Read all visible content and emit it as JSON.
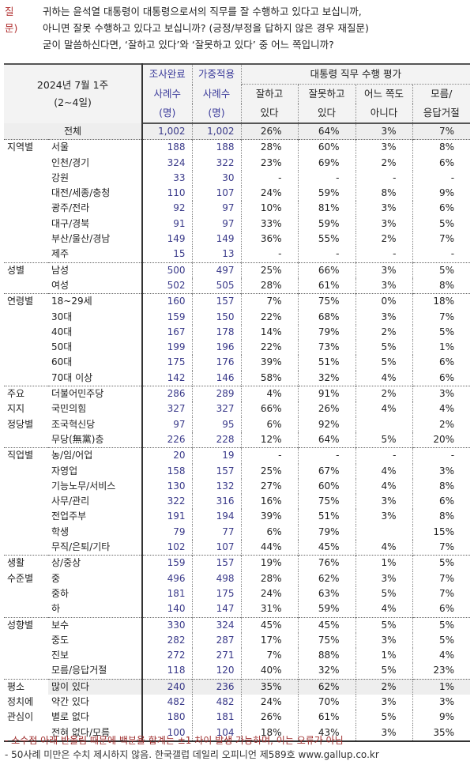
{
  "question": {
    "tag": "질문)",
    "lines": [
      "귀하는 윤석열 대통령이 대통령으로서의 직무를 잘 수행하고 있다고 보십니까,",
      "아니면 잘못 수행하고 있다고 보십니까? (긍정/부정을 답하지 않은 경우 재질문)",
      "굳이 말씀하신다면, ‘잘하고 있다’와 ‘잘못하고 있다’ 중 어느 쪽입니까?"
    ]
  },
  "header": {
    "period": "2024년 7월 1주",
    "dates": "(2~4일)",
    "col1_top": "조사완료",
    "col2_top": "가중적용",
    "n_label": "사례수",
    "n_unit": "(명)",
    "group_title": "대통령 직무 수행 평가",
    "c1": [
      "잘하고",
      "있다"
    ],
    "c2": [
      "잘못하고",
      "있다"
    ],
    "c3": [
      "어느 쪽도",
      "아니다"
    ],
    "c4": [
      "모름/",
      "응답거절"
    ]
  },
  "rows": [
    {
      "g": "",
      "label": "전체",
      "v": [
        "1,002",
        "1,002",
        "26%",
        "64%",
        "3%",
        "7%"
      ],
      "total": true
    },
    {
      "g": "지역별",
      "label": "서울",
      "v": [
        "188",
        "188",
        "28%",
        "60%",
        "3%",
        "8%"
      ],
      "sep": true
    },
    {
      "g": "",
      "label": "인천/경기",
      "v": [
        "324",
        "322",
        "23%",
        "69%",
        "2%",
        "6%"
      ]
    },
    {
      "g": "",
      "label": "강원",
      "v": [
        "33",
        "30",
        "-",
        "-",
        "-",
        "-"
      ]
    },
    {
      "g": "",
      "label": "대전/세종/충청",
      "v": [
        "110",
        "107",
        "24%",
        "59%",
        "8%",
        "9%"
      ]
    },
    {
      "g": "",
      "label": "광주/전라",
      "v": [
        "92",
        "97",
        "10%",
        "81%",
        "3%",
        "6%"
      ]
    },
    {
      "g": "",
      "label": "대구/경북",
      "v": [
        "91",
        "97",
        "33%",
        "59%",
        "3%",
        "5%"
      ]
    },
    {
      "g": "",
      "label": "부산/울산/경남",
      "v": [
        "149",
        "149",
        "36%",
        "55%",
        "2%",
        "7%"
      ]
    },
    {
      "g": "",
      "label": "제주",
      "v": [
        "15",
        "13",
        "-",
        "-",
        "-",
        "-"
      ]
    },
    {
      "g": "성별",
      "label": "남성",
      "v": [
        "500",
        "497",
        "25%",
        "66%",
        "3%",
        "5%"
      ],
      "sep": true
    },
    {
      "g": "",
      "label": "여성",
      "v": [
        "502",
        "505",
        "28%",
        "61%",
        "3%",
        "8%"
      ]
    },
    {
      "g": "연령별",
      "label": "18~29세",
      "v": [
        "160",
        "157",
        "7%",
        "75%",
        "0%",
        "18%"
      ],
      "sep": true
    },
    {
      "g": "",
      "label": "30대",
      "v": [
        "159",
        "150",
        "22%",
        "68%",
        "3%",
        "7%"
      ]
    },
    {
      "g": "",
      "label": "40대",
      "v": [
        "167",
        "178",
        "14%",
        "79%",
        "2%",
        "5%"
      ]
    },
    {
      "g": "",
      "label": "50대",
      "v": [
        "199",
        "196",
        "22%",
        "73%",
        "5%",
        "1%"
      ]
    },
    {
      "g": "",
      "label": "60대",
      "v": [
        "175",
        "176",
        "39%",
        "51%",
        "5%",
        "6%"
      ]
    },
    {
      "g": "",
      "label": "70대 이상",
      "v": [
        "142",
        "146",
        "58%",
        "32%",
        "4%",
        "6%"
      ]
    },
    {
      "g": "주요",
      "label": "더불어민주당",
      "v": [
        "286",
        "289",
        "4%",
        "91%",
        "2%",
        "3%"
      ],
      "sep": true
    },
    {
      "g": "지지",
      "label": "국민의힘",
      "v": [
        "327",
        "327",
        "66%",
        "26%",
        "4%",
        "4%"
      ]
    },
    {
      "g": "정당별",
      "label": "조국혁신당",
      "v": [
        "97",
        "95",
        "6%",
        "92%",
        "",
        "2%"
      ]
    },
    {
      "g": "",
      "label": "무당(無黨)층",
      "v": [
        "226",
        "228",
        "12%",
        "64%",
        "5%",
        "20%"
      ]
    },
    {
      "g": "직업별",
      "label": "농/임/어업",
      "v": [
        "20",
        "19",
        "-",
        "-",
        "-",
        "-"
      ],
      "sep": true
    },
    {
      "g": "",
      "label": "자영업",
      "v": [
        "158",
        "157",
        "25%",
        "67%",
        "4%",
        "3%"
      ]
    },
    {
      "g": "",
      "label": "기능노무/서비스",
      "v": [
        "130",
        "132",
        "27%",
        "60%",
        "4%",
        "8%"
      ]
    },
    {
      "g": "",
      "label": "사무/관리",
      "v": [
        "322",
        "316",
        "16%",
        "75%",
        "3%",
        "6%"
      ]
    },
    {
      "g": "",
      "label": "전업주부",
      "v": [
        "191",
        "194",
        "39%",
        "51%",
        "3%",
        "8%"
      ]
    },
    {
      "g": "",
      "label": "학생",
      "v": [
        "79",
        "77",
        "6%",
        "79%",
        "",
        "15%"
      ]
    },
    {
      "g": "",
      "label": "무직/은퇴/기타",
      "v": [
        "102",
        "107",
        "44%",
        "45%",
        "4%",
        "7%"
      ]
    },
    {
      "g": "생활",
      "label": "상/중상",
      "v": [
        "159",
        "157",
        "19%",
        "76%",
        "1%",
        "5%"
      ],
      "sep": true
    },
    {
      "g": "수준별",
      "label": "중",
      "v": [
        "496",
        "498",
        "28%",
        "62%",
        "3%",
        "7%"
      ]
    },
    {
      "g": "",
      "label": "중하",
      "v": [
        "181",
        "175",
        "24%",
        "63%",
        "5%",
        "7%"
      ]
    },
    {
      "g": "",
      "label": "하",
      "v": [
        "140",
        "147",
        "31%",
        "59%",
        "4%",
        "6%"
      ]
    },
    {
      "g": "성향별",
      "label": "보수",
      "v": [
        "330",
        "324",
        "45%",
        "45%",
        "5%",
        "5%"
      ],
      "sep": true
    },
    {
      "g": "",
      "label": "중도",
      "v": [
        "282",
        "287",
        "17%",
        "75%",
        "3%",
        "5%"
      ]
    },
    {
      "g": "",
      "label": "진보",
      "v": [
        "272",
        "271",
        "7%",
        "88%",
        "1%",
        "4%"
      ]
    },
    {
      "g": "",
      "label": "모름/응답거절",
      "v": [
        "118",
        "120",
        "40%",
        "32%",
        "5%",
        "23%"
      ]
    },
    {
      "g": "평소",
      "label": "많이 있다",
      "v": [
        "240",
        "236",
        "35%",
        "62%",
        "2%",
        "1%"
      ],
      "sep": true,
      "hl": true
    },
    {
      "g": "정치에",
      "label": "약간 있다",
      "v": [
        "482",
        "482",
        "24%",
        "70%",
        "3%",
        "3%"
      ]
    },
    {
      "g": "관심이",
      "label": "별로 없다",
      "v": [
        "180",
        "181",
        "26%",
        "61%",
        "5%",
        "9%"
      ]
    },
    {
      "g": "",
      "label": "전혀 없다/모름",
      "v": [
        "100",
        "104",
        "18%",
        "43%",
        "3%",
        "35%"
      ]
    }
  ],
  "footnotes": [
    "- 소수점 아래 반올림 때문에 백분율 합계는 ±1 차이 발생 가능하며, 이는 오류가 아님",
    "- 50사례 미만은 수치 제시하지 않음. 한국갤럽 데일리 오피니언 제589호 www.gallup.co.kr"
  ]
}
